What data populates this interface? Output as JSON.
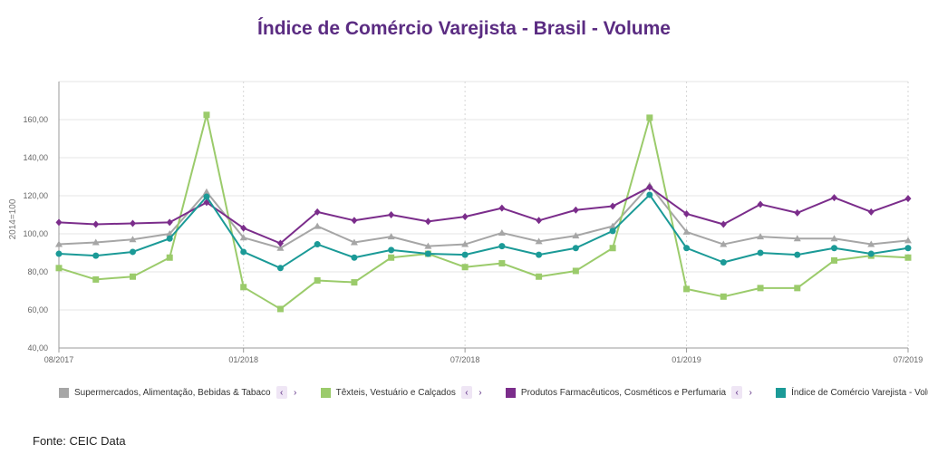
{
  "title": "Índice de Comércio Varejista - Brasil - Volume",
  "source": "Fonte: CEIC Data",
  "nav": {
    "prev": "‹",
    "next": "›"
  },
  "chart_data": {
    "type": "line",
    "ylabel": "2014=100",
    "ylim": [
      40,
      180
    ],
    "yticks": [
      40,
      60,
      80,
      100,
      120,
      140,
      160
    ],
    "ytick_labels": [
      "40,00",
      "60,00",
      "80,00",
      "100,00",
      "120,00",
      "140,00",
      "160,00"
    ],
    "x": [
      "08/2017",
      "09/2017",
      "10/2017",
      "11/2017",
      "12/2017",
      "01/2018",
      "02/2018",
      "03/2018",
      "04/2018",
      "05/2018",
      "06/2018",
      "07/2018",
      "08/2018",
      "09/2018",
      "10/2018",
      "11/2018",
      "12/2018",
      "01/2019",
      "02/2019",
      "03/2019",
      "04/2019",
      "05/2019",
      "06/2019",
      "07/2019"
    ],
    "xtick_labels": [
      {
        "index": 0,
        "label": "08/2017"
      },
      {
        "index": 5,
        "label": "01/2018"
      },
      {
        "index": 11,
        "label": "07/2018"
      },
      {
        "index": 17,
        "label": "01/2019"
      },
      {
        "index": 23,
        "label": "07/2019"
      }
    ],
    "grid": true,
    "legend_position": "bottom",
    "series": [
      {
        "name": "Supermercados, Alimentação, Bebidas & Tabaco",
        "color": "#a6a6a6",
        "marker": "triangle",
        "values": [
          94.5,
          95.5,
          97,
          100,
          122,
          98,
          92.5,
          104,
          95.5,
          98.5,
          93.5,
          94.5,
          100.5,
          96,
          99,
          104,
          125.5,
          101,
          94.5,
          98.5,
          97.5,
          97.5,
          94.5,
          96.5
        ]
      },
      {
        "name": "Têxteis, Vestuário e Calçados",
        "color": "#9bcb6b",
        "marker": "square",
        "values": [
          82,
          76,
          77.5,
          87.5,
          162.5,
          72,
          60.5,
          75.5,
          74.5,
          87.5,
          89.5,
          82.5,
          84.5,
          77.5,
          80.5,
          92.5,
          161,
          71,
          67,
          71.5,
          71.5,
          86,
          88.5,
          87.5
        ]
      },
      {
        "name": "Produtos Farmacêuticos, Cosméticos e Perfumaria",
        "color": "#7b2d8b",
        "marker": "diamond",
        "values": [
          106,
          105,
          105.5,
          106,
          116.5,
          103,
          95,
          111.5,
          107,
          110,
          106.5,
          109,
          113.5,
          107,
          112.5,
          114.5,
          124.5,
          110.5,
          105,
          115.5,
          111,
          119,
          111.5,
          118.5
        ]
      },
      {
        "name": "Índice de Comércio Varejista - Volume Total",
        "color": "#1b9a97",
        "marker": "circle",
        "values": [
          89.5,
          88.5,
          90.5,
          97.5,
          119.5,
          90.5,
          82,
          94.5,
          87.5,
          91.5,
          89.5,
          89,
          93.5,
          89,
          92.5,
          101.5,
          120.5,
          92.5,
          85,
          90,
          89,
          92.5,
          89.5,
          92.5
        ]
      }
    ]
  }
}
